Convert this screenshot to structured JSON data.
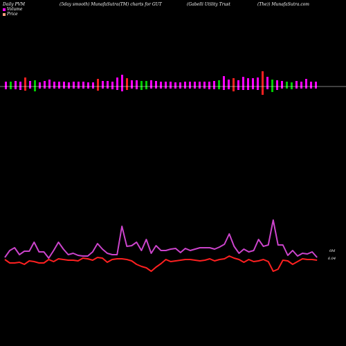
{
  "header": {
    "t1": "Daily PVM",
    "t2": "(5day smooth) MunafaSutra(TM) charts for GUT",
    "t3": "(Gabelli  Utility Trust",
    "t4": "(The)) MunafaSutra.com"
  },
  "legend": [
    {
      "label": "Volume",
      "color": "#ff00ff"
    },
    {
      "label": "Price",
      "color": "#ffa07a"
    }
  ],
  "colors": {
    "up": "#ff00ff",
    "down": "#ff2020",
    "green": "#00cc00",
    "vol_line": "#cc44cc",
    "price_line": "#ff2020"
  },
  "chart_data": {
    "type": "line",
    "series": [
      {
        "name": "Volume",
        "label": "0M",
        "values": [
          372,
          362,
          358,
          368,
          363,
          363,
          350,
          364,
          364,
          373,
          362,
          350,
          360,
          368,
          366,
          369,
          370,
          370,
          364,
          352,
          360,
          366,
          368,
          368,
          327,
          356,
          355,
          350,
          362,
          346,
          366,
          355,
          362,
          362,
          360,
          359,
          365,
          359,
          362,
          360,
          358,
          358,
          358,
          360,
          357,
          353,
          338,
          356,
          366,
          360,
          364,
          362,
          346,
          356,
          354,
          318,
          354,
          354,
          369,
          362,
          370,
          366,
          367,
          364,
          372
        ]
      },
      {
        "name": "Price",
        "label": "6.04",
        "values": [
          375,
          380,
          380,
          379,
          382,
          377,
          378,
          380,
          380,
          375,
          378,
          374,
          375,
          376,
          376,
          377,
          373,
          374,
          376,
          372,
          373,
          379,
          375,
          374,
          374,
          375,
          377,
          382,
          385,
          387,
          392,
          386,
          381,
          375,
          378,
          377,
          376,
          375,
          375,
          376,
          377,
          376,
          374,
          377,
          375,
          374,
          370,
          373,
          375,
          379,
          375,
          378,
          377,
          375,
          378,
          392,
          389,
          376,
          377,
          382,
          378,
          374,
          375,
          375,
          376
        ]
      }
    ],
    "bars": [
      {
        "up": 7,
        "down": 4,
        "c": "m"
      },
      {
        "up": 7,
        "down": 4,
        "c": "g"
      },
      {
        "up": 8,
        "down": 4,
        "c": "m"
      },
      {
        "up": 7,
        "down": 5,
        "c": "m"
      },
      {
        "up": 13,
        "down": 6,
        "c": "r"
      },
      {
        "up": 8,
        "down": 3,
        "c": "m"
      },
      {
        "up": 9,
        "down": 7,
        "c": "g"
      },
      {
        "up": 6,
        "down": 3,
        "c": "m"
      },
      {
        "up": 8,
        "down": 3,
        "c": "m"
      },
      {
        "up": 10,
        "down": 3,
        "c": "m"
      },
      {
        "up": 7,
        "down": 3,
        "c": "m"
      },
      {
        "up": 7,
        "down": 3,
        "c": "m"
      },
      {
        "up": 7,
        "down": 3,
        "c": "m"
      },
      {
        "up": 6,
        "down": 3,
        "c": "m"
      },
      {
        "up": 7,
        "down": 3,
        "c": "m"
      },
      {
        "up": 7,
        "down": 3,
        "c": "m"
      },
      {
        "up": 7,
        "down": 3,
        "c": "m"
      },
      {
        "up": 6,
        "down": 3,
        "c": "m"
      },
      {
        "up": 6,
        "down": 3,
        "c": "m"
      },
      {
        "up": 11,
        "down": 6,
        "c": "r"
      },
      {
        "up": 8,
        "down": 3,
        "c": "m"
      },
      {
        "up": 8,
        "down": 3,
        "c": "m"
      },
      {
        "up": 7,
        "down": 4,
        "c": "m"
      },
      {
        "up": 13,
        "down": 5,
        "c": "m"
      },
      {
        "up": 17,
        "down": 7,
        "c": "m"
      },
      {
        "up": 12,
        "down": 5,
        "c": "r"
      },
      {
        "up": 9,
        "down": 3,
        "c": "m"
      },
      {
        "up": 9,
        "down": 4,
        "c": "m"
      },
      {
        "up": 8,
        "down": 5,
        "c": "g"
      },
      {
        "up": 8,
        "down": 4,
        "c": "g"
      },
      {
        "up": 9,
        "down": 3,
        "c": "m"
      },
      {
        "up": 8,
        "down": 3,
        "c": "m"
      },
      {
        "up": 7,
        "down": 3,
        "c": "m"
      },
      {
        "up": 7,
        "down": 3,
        "c": "m"
      },
      {
        "up": 7,
        "down": 3,
        "c": "m"
      },
      {
        "up": 6,
        "down": 3,
        "c": "m"
      },
      {
        "up": 6,
        "down": 3,
        "c": "m"
      },
      {
        "up": 7,
        "down": 3,
        "c": "m"
      },
      {
        "up": 7,
        "down": 3,
        "c": "m"
      },
      {
        "up": 7,
        "down": 3,
        "c": "m"
      },
      {
        "up": 7,
        "down": 3,
        "c": "m"
      },
      {
        "up": 7,
        "down": 3,
        "c": "m"
      },
      {
        "up": 7,
        "down": 4,
        "c": "m"
      },
      {
        "up": 8,
        "down": 4,
        "c": "m"
      },
      {
        "up": 9,
        "down": 4,
        "c": "g"
      },
      {
        "up": 15,
        "down": 5,
        "c": "m"
      },
      {
        "up": 10,
        "down": 4,
        "c": "m"
      },
      {
        "up": 12,
        "down": 7,
        "c": "r"
      },
      {
        "up": 9,
        "down": 5,
        "c": "m"
      },
      {
        "up": 14,
        "down": 5,
        "c": "m"
      },
      {
        "up": 12,
        "down": 5,
        "c": "m"
      },
      {
        "up": 12,
        "down": 4,
        "c": "m"
      },
      {
        "up": 13,
        "down": 5,
        "c": "m"
      },
      {
        "up": 22,
        "down": 12,
        "c": "r"
      },
      {
        "up": 14,
        "down": 4,
        "c": "m"
      },
      {
        "up": 10,
        "down": 8,
        "c": "g"
      },
      {
        "up": 9,
        "down": 5,
        "c": "m"
      },
      {
        "up": 8,
        "down": 3,
        "c": "m"
      },
      {
        "up": 7,
        "down": 3,
        "c": "g"
      },
      {
        "up": 6,
        "down": 4,
        "c": "g"
      },
      {
        "up": 8,
        "down": 3,
        "c": "m"
      },
      {
        "up": 7,
        "down": 3,
        "c": "m"
      },
      {
        "up": 11,
        "down": 3,
        "c": "m"
      },
      {
        "up": 7,
        "down": 3,
        "c": "m"
      },
      {
        "up": 7,
        "down": 3,
        "c": "m"
      }
    ],
    "grid": false
  }
}
